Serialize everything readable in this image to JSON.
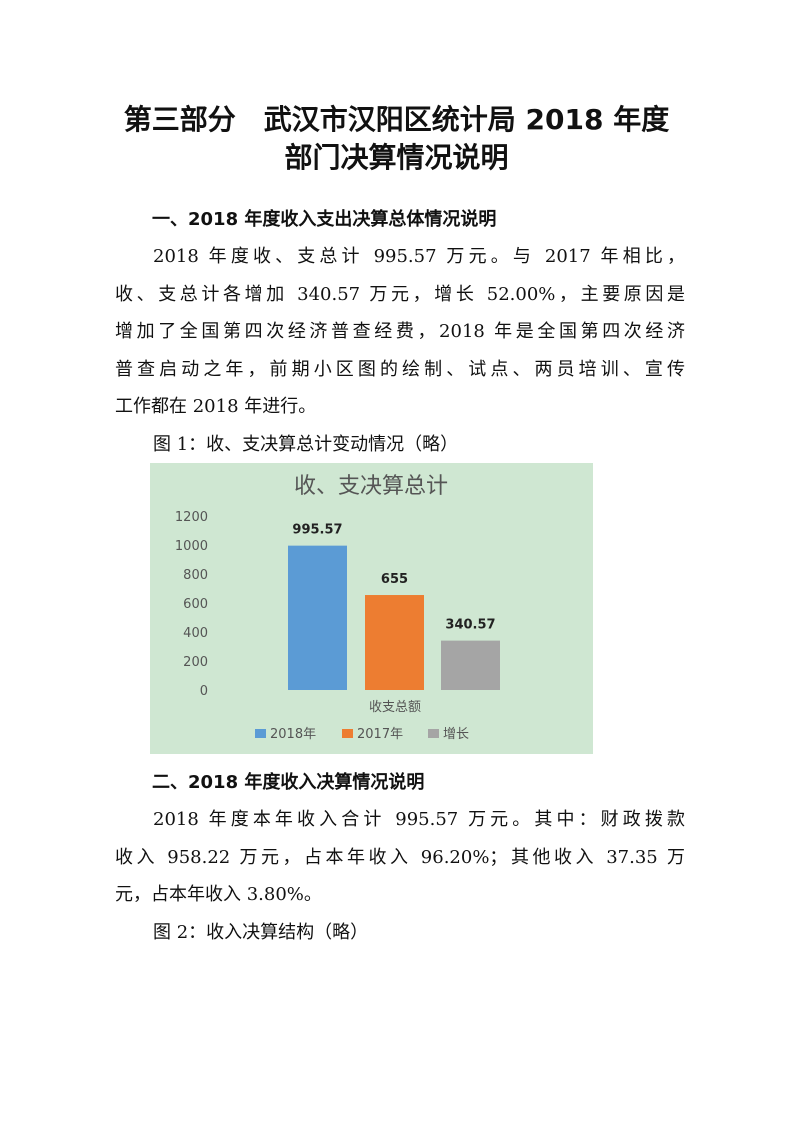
{
  "title": {
    "line1": "第三部分　武汉市汉阳区统计局 2018 年度",
    "line2": "部门决算情况说明"
  },
  "section1": {
    "heading": "一、2018 年度收入支出决算总体情况说明",
    "lines": [
      "2018 年度收、支总计 995.57 万元。与 2017 年相比，",
      "收、支总计各增加 340.57 万元，增长 52.00%，主要原因是",
      "增加了全国第四次经济普查经费，2018 年是全国第四次经济",
      "普查启动之年，前期小区图的绘制、试点、两员培训、宣传",
      "工作都在 2018 年进行。"
    ],
    "figure_caption": "图 1：收、支决算总计变动情况（略）"
  },
  "chart_data": {
    "type": "bar",
    "title": "收、支决算总计",
    "categories": [
      "收支总额"
    ],
    "series": [
      {
        "name": "2018年",
        "values": [
          995.57
        ],
        "color": "#5b9bd5",
        "label": "995.57"
      },
      {
        "name": "2017年",
        "values": [
          655
        ],
        "color": "#ed7d31",
        "label": "655"
      },
      {
        "name": "增长",
        "values": [
          340.57
        ],
        "color": "#a5a5a5",
        "label": "340.57"
      }
    ],
    "ylim": [
      0,
      1200
    ],
    "yticks": [
      "0",
      "200",
      "400",
      "600",
      "800",
      "1000",
      "1200"
    ],
    "legend": "bottom",
    "background": "#cfe7d2",
    "grid": false
  },
  "section2": {
    "heading": "二、2018 年度收入决算情况说明",
    "lines": [
      "2018 年度本年收入合计 995.57 万元。其中：财政拨款",
      "收入 958.22 万元，占本年收入 96.20%；其他收入 37.35 万",
      "元，占本年收入 3.80%。"
    ],
    "figure_caption": "图 2：收入决算结构（略）"
  }
}
